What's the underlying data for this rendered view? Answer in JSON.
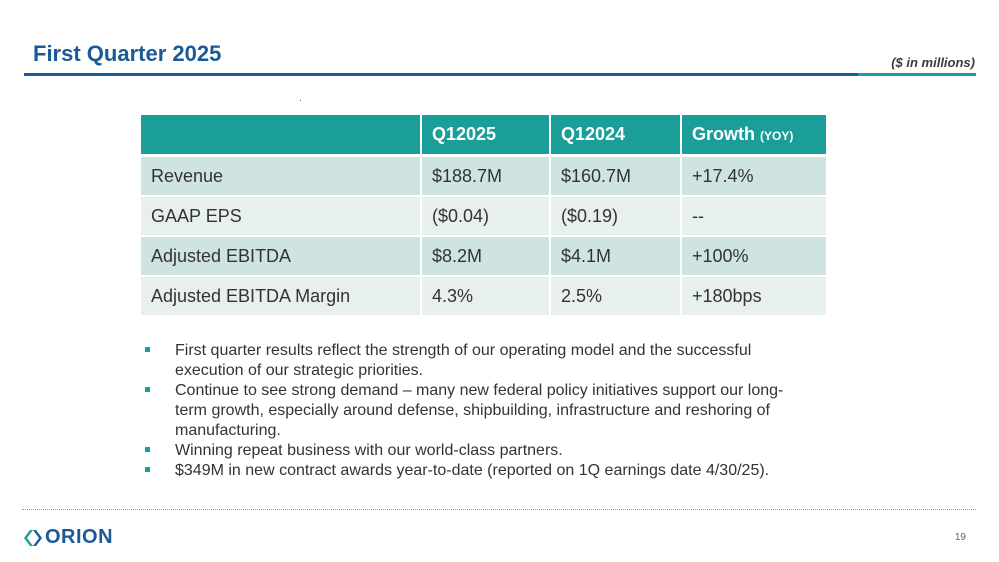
{
  "slide": {
    "title": "First Quarter 2025",
    "units_note": "($ in millions)",
    "page_number": "19"
  },
  "table": {
    "headers": [
      "",
      "Q12025",
      "Q12024",
      "Growth"
    ],
    "growth_suffix": "(YOY)",
    "rows": [
      [
        "Revenue",
        "$188.7M",
        "$160.7M",
        "+17.4%"
      ],
      [
        "GAAP EPS",
        "($0.04)",
        "($0.19)",
        "--"
      ],
      [
        "Adjusted EBITDA",
        "$8.2M",
        "$4.1M",
        "+100%"
      ],
      [
        "Adjusted EBITDA Margin",
        "4.3%",
        "2.5%",
        "+180bps"
      ]
    ]
  },
  "bullets": [
    "First quarter results reflect the strength of our operating model and the successful execution of our strategic priorities.",
    "Continue to see strong demand – many new federal policy initiatives support our long-term growth, especially around defense, shipbuilding, infrastructure and reshoring of manufacturing.",
    "Winning repeat business with our world-class partners.",
    "$349M in new contract awards year-to-date (reported on 1Q earnings date 4/30/25)."
  ],
  "logo": {
    "text": "ORION",
    "icon": "orion-chevrons-icon"
  },
  "colors": {
    "brand_blue": "#1a5a96",
    "teal": "#1a9e9a",
    "row_odd": "#cfe3e1",
    "row_even": "#e8f0ef"
  }
}
